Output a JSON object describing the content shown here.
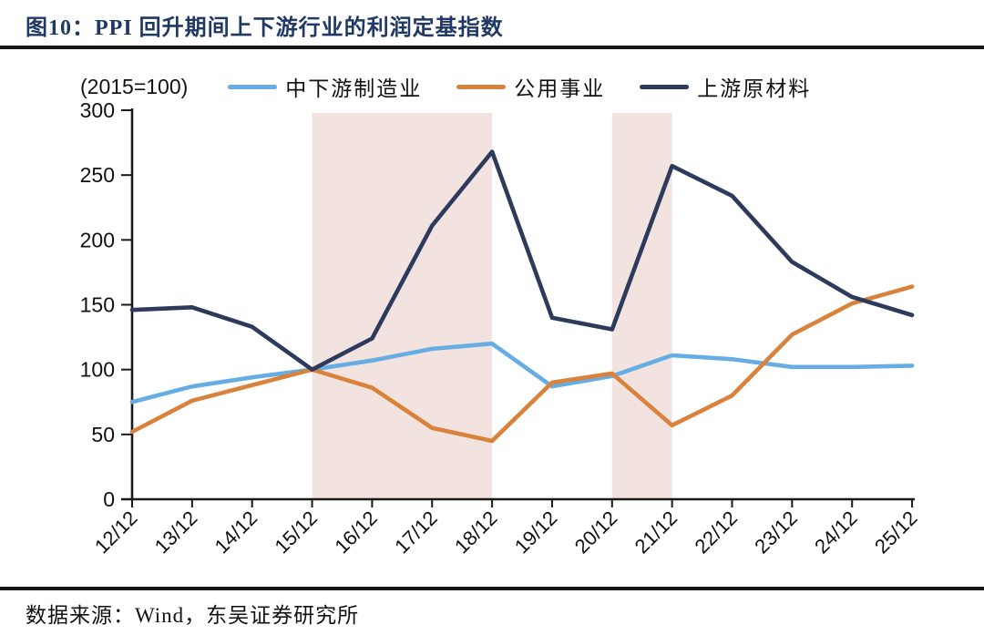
{
  "header": {
    "title": "图10：PPI 回升期间上下游行业的利润定基指数"
  },
  "legend": {
    "unit_label": "(2015=100)"
  },
  "footer": {
    "source": "数据来源：Wind，东吴证券研究所"
  },
  "colors": {
    "title_navy": "#1F3864",
    "rule_black": "#161616",
    "axis_black": "#1a1a1a",
    "shaded_band": "#F2E3E1"
  },
  "chart_data": {
    "type": "line",
    "title": "图10：PPI 回升期间上下游行业的利润定基指数",
    "unit_note": "(2015=100)",
    "xlabel": "",
    "ylabel": "",
    "ylim": [
      0,
      300
    ],
    "yticks": [
      0,
      50,
      100,
      150,
      200,
      250,
      300
    ],
    "grid": false,
    "legend_position": "top",
    "categories": [
      "12/12",
      "13/12",
      "14/12",
      "15/12",
      "16/12",
      "17/12",
      "18/12",
      "19/12",
      "20/12",
      "21/12",
      "22/12",
      "23/12",
      "24/12",
      "25/12"
    ],
    "series": [
      {
        "name": "中下游制造业",
        "color": "#65ADE3",
        "values": [
          75,
          87,
          94,
          100,
          107,
          116,
          120,
          87,
          95,
          111,
          108,
          102,
          102,
          103
        ]
      },
      {
        "name": "公用事业",
        "color": "#D9823B",
        "values": [
          52,
          76,
          88,
          100,
          86,
          55,
          45,
          90,
          97,
          57,
          80,
          127,
          151,
          164
        ]
      },
      {
        "name": "上游原材料",
        "color": "#2E3A5C",
        "values": [
          146,
          148,
          133,
          100,
          124,
          211,
          268,
          140,
          131,
          257,
          234,
          183,
          156,
          142
        ]
      }
    ],
    "shaded_regions": [
      {
        "from": "15/12",
        "to": "18/12",
        "color": "#F2E3E1"
      },
      {
        "from": "20/12",
        "to": "21/12",
        "color": "#F2E3E1"
      }
    ]
  }
}
